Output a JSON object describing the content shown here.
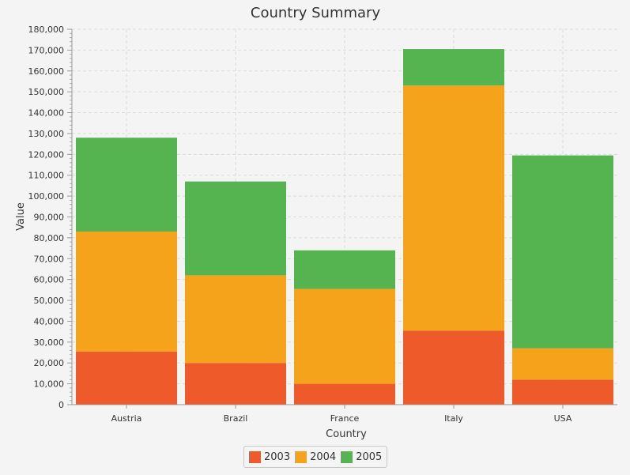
{
  "chart_data": {
    "type": "bar",
    "stacked": true,
    "title": "Country Summary",
    "xlabel": "Country",
    "ylabel": "Value",
    "categories": [
      "Austria",
      "Brazil",
      "France",
      "Italy",
      "USA"
    ],
    "series": [
      {
        "name": "2003",
        "color": "#ee5a2a",
        "values": [
          25500,
          20000,
          10000,
          35500,
          12000
        ]
      },
      {
        "name": "2004",
        "color": "#f5a31a",
        "values": [
          57500,
          42000,
          45500,
          117500,
          15000
        ]
      },
      {
        "name": "2005",
        "color": "#55b44f",
        "values": [
          45000,
          45000,
          18500,
          17500,
          92500
        ]
      }
    ],
    "ylim": [
      0,
      180000
    ],
    "y_major_step": 10000,
    "y_tick_labels": [
      "0",
      "10,000",
      "20,000",
      "30,000",
      "40,000",
      "50,000",
      "60,000",
      "70,000",
      "80,000",
      "90,000",
      "100,000",
      "110,000",
      "120,000",
      "130,000",
      "140,000",
      "150,000",
      "160,000",
      "170,000",
      "180,000"
    ],
    "grid": true,
    "legend_position": "bottom"
  }
}
